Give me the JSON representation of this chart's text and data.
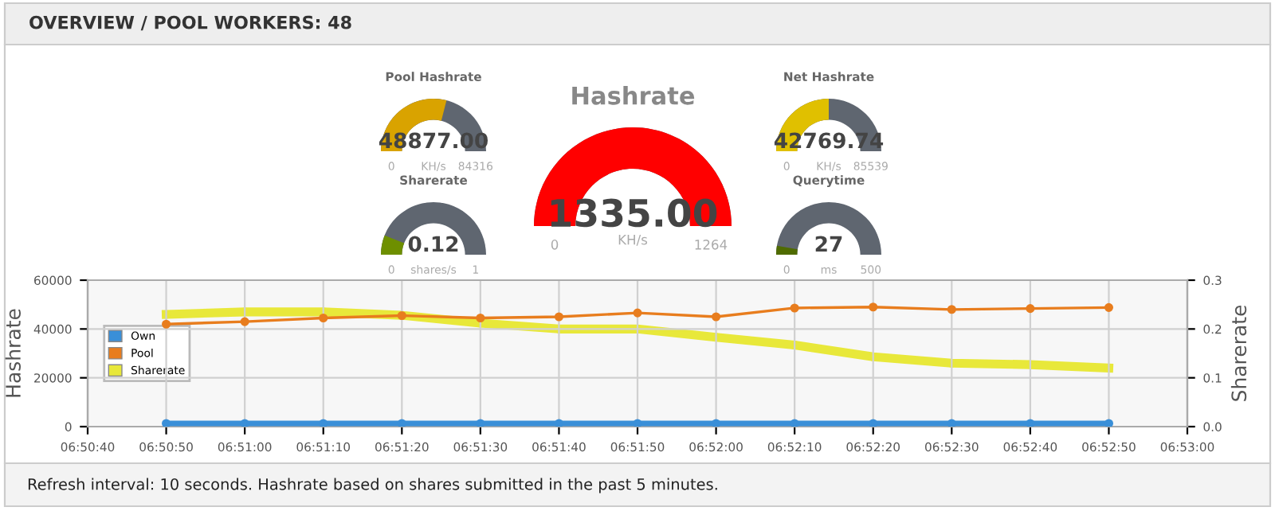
{
  "chart_data": [
    {
      "type": "other",
      "title": "OVERVIEW / POOL WORKERS: 48",
      "annotations": [
        "Refresh interval: 10 seconds. Hashrate based on shares submitted in the past 5 minutes."
      ]
    },
    {
      "type": "other",
      "title": "Pool Hashrate",
      "values": [
        48877.0
      ],
      "value_labels": [
        "48877.00"
      ],
      "annotations": [
        "0",
        "84316"
      ],
      "ylabel": "KH/s",
      "colors": [
        "#d9a300"
      ]
    },
    {
      "type": "other",
      "title": "Sharerate",
      "values": [
        0.12
      ],
      "value_labels": [
        "0.12"
      ],
      "annotations": [
        "0",
        "1"
      ],
      "ylabel": "shares/s",
      "colors": [
        "#6e8f00"
      ]
    },
    {
      "type": "other",
      "title": "Hashrate",
      "values": [
        1335.0
      ],
      "value_labels": [
        "1335.00"
      ],
      "annotations": [
        "0",
        "1264"
      ],
      "ylabel": "KH/s",
      "colors": [
        "#ff0000"
      ]
    },
    {
      "type": "other",
      "title": "Net Hashrate",
      "values": [
        42769.74
      ],
      "value_labels": [
        "42769.74"
      ],
      "annotations": [
        "0",
        "85539"
      ],
      "ylabel": "KH/s",
      "colors": [
        "#e0c000"
      ]
    },
    {
      "type": "other",
      "title": "Querytime",
      "values": [
        27
      ],
      "value_labels": [
        "27"
      ],
      "annotations": [
        "0",
        "500"
      ],
      "ylabel": "ms",
      "colors": [
        "#4f6b00"
      ]
    },
    {
      "type": "line",
      "ylabel": "Hashrate",
      "y2label": "Sharerate",
      "x": [
        6.847222,
        6.85,
        6.852778,
        6.855556,
        6.858333,
        6.861111,
        6.863889,
        6.866667,
        6.869444,
        6.872222,
        6.875,
        6.877778,
        6.880556
      ],
      "series": [
        {
          "name": "Own",
          "color": "#3a8fd8",
          "values": [
            1300,
            1300,
            1300,
            1300,
            1300,
            1300,
            1300,
            1300,
            1300,
            1300,
            1300,
            1300,
            1300
          ]
        },
        {
          "name": "Pool",
          "color": "#e87d1e",
          "values": [
            42000,
            43000,
            44500,
            45500,
            44500,
            45000,
            46600,
            45000,
            48600,
            49000,
            48000,
            48400,
            48800
          ]
        },
        {
          "name": "Sharerate",
          "color": "#e8e83a",
          "axis": "y2",
          "values": [
            0.23,
            0.235,
            0.235,
            0.228,
            0.212,
            0.2,
            0.2,
            0.183,
            0.167,
            0.143,
            0.13,
            0.127,
            0.12
          ]
        }
      ],
      "xlim": [
        6.844444,
        6.883333
      ],
      "xticks": [
        {
          "value": 6.844444,
          "label": "06:50:40"
        },
        {
          "value": 6.847222,
          "label": "06:50:50"
        },
        {
          "value": 6.85,
          "label": "06:51:00"
        },
        {
          "value": 6.852778,
          "label": "06:51:10"
        },
        {
          "value": 6.855556,
          "label": "06:51:20"
        },
        {
          "value": 6.858333,
          "label": "06:51:30"
        },
        {
          "value": 6.861111,
          "label": "06:51:40"
        },
        {
          "value": 6.863889,
          "label": "06:51:50"
        },
        {
          "value": 6.866667,
          "label": "06:52:00"
        },
        {
          "value": 6.869444,
          "label": "06:52:10"
        },
        {
          "value": 6.872222,
          "label": "06:52:20"
        },
        {
          "value": 6.875,
          "label": "06:52:30"
        },
        {
          "value": 6.877778,
          "label": "06:52:40"
        },
        {
          "value": 6.880556,
          "label": "06:52:50"
        },
        {
          "value": 6.883333,
          "label": "06:53:00"
        }
      ],
      "ylim": [
        0,
        60000
      ],
      "yticks": [
        0,
        20000,
        40000,
        60000
      ],
      "y2lim": [
        0,
        0.3
      ],
      "y2ticks": [
        {
          "value": 0,
          "label": "0.0"
        },
        0.1,
        0.2,
        0.3
      ],
      "grid": true,
      "legend": "left",
      "marker": "circle",
      "line_style": "solid"
    }
  ]
}
